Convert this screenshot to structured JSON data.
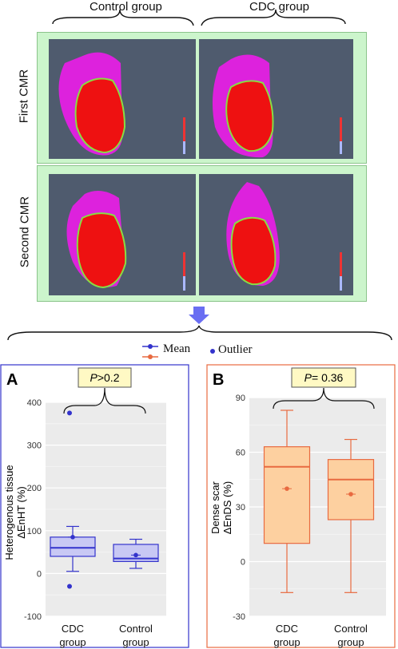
{
  "top": {
    "column_labels": [
      "Control group",
      "CDC group"
    ],
    "row_labels": [
      "First CMR",
      "Second CMR"
    ]
  },
  "legend": {
    "mean_label": "Mean",
    "outlier_label": "Outlier"
  },
  "colors": {
    "heart_background": "#4f5b6e",
    "myocardium": "#dd22dd",
    "scar": "#ee1111",
    "border_zone": "#88dd44",
    "arrow": "#6a6ef2",
    "panel_a_frame": "#3333cc",
    "panel_b_frame": "#e86a40",
    "box_a_fill": "#c8c8f4",
    "box_a_stroke": "#3333cc",
    "box_b_fill": "#fdd0a0",
    "box_b_stroke": "#e86a40"
  },
  "chart_data": [
    {
      "type": "box",
      "panel_letter": "A",
      "p_value": {
        "italic": "P",
        "rest": ">0.2"
      },
      "ylabel_line1": "Heterogenous tissue",
      "ylabel_line2": "ΔEnHT (%)",
      "ylim": [
        -100,
        400
      ],
      "yticks": [
        "400",
        "300",
        "200",
        "100",
        "0",
        "-100"
      ],
      "grid": true,
      "categories": [
        {
          "line1": "CDC",
          "line2": "group",
          "min": 5,
          "q1": 40,
          "median": 60,
          "q3": 85,
          "max": 110,
          "mean": 85,
          "outliers": [
            375,
            -30
          ]
        },
        {
          "line1": "Control",
          "line2": "group",
          "min": 12,
          "q1": 28,
          "median": 35,
          "q3": 68,
          "max": 80,
          "mean": 43,
          "outliers": []
        }
      ]
    },
    {
      "type": "box",
      "panel_letter": "B",
      "p_value": {
        "italic": "P",
        "rest": "= 0.36"
      },
      "ylabel_line1": "Dense scar",
      "ylabel_line2": "ΔEnDS (%)",
      "ylim": [
        -30,
        90
      ],
      "yticks": [
        "90",
        "60",
        "30",
        "0",
        "-30"
      ],
      "grid": true,
      "categories": [
        {
          "line1": "CDC",
          "line2": "group",
          "min": -17,
          "q1": 10,
          "median": 52,
          "q3": 63,
          "max": 83,
          "mean": 40,
          "outliers": []
        },
        {
          "line1": "Control",
          "line2": "group",
          "min": -17,
          "q1": 23,
          "median": 45,
          "q3": 56,
          "max": 67,
          "mean": 37,
          "outliers": []
        }
      ]
    }
  ]
}
